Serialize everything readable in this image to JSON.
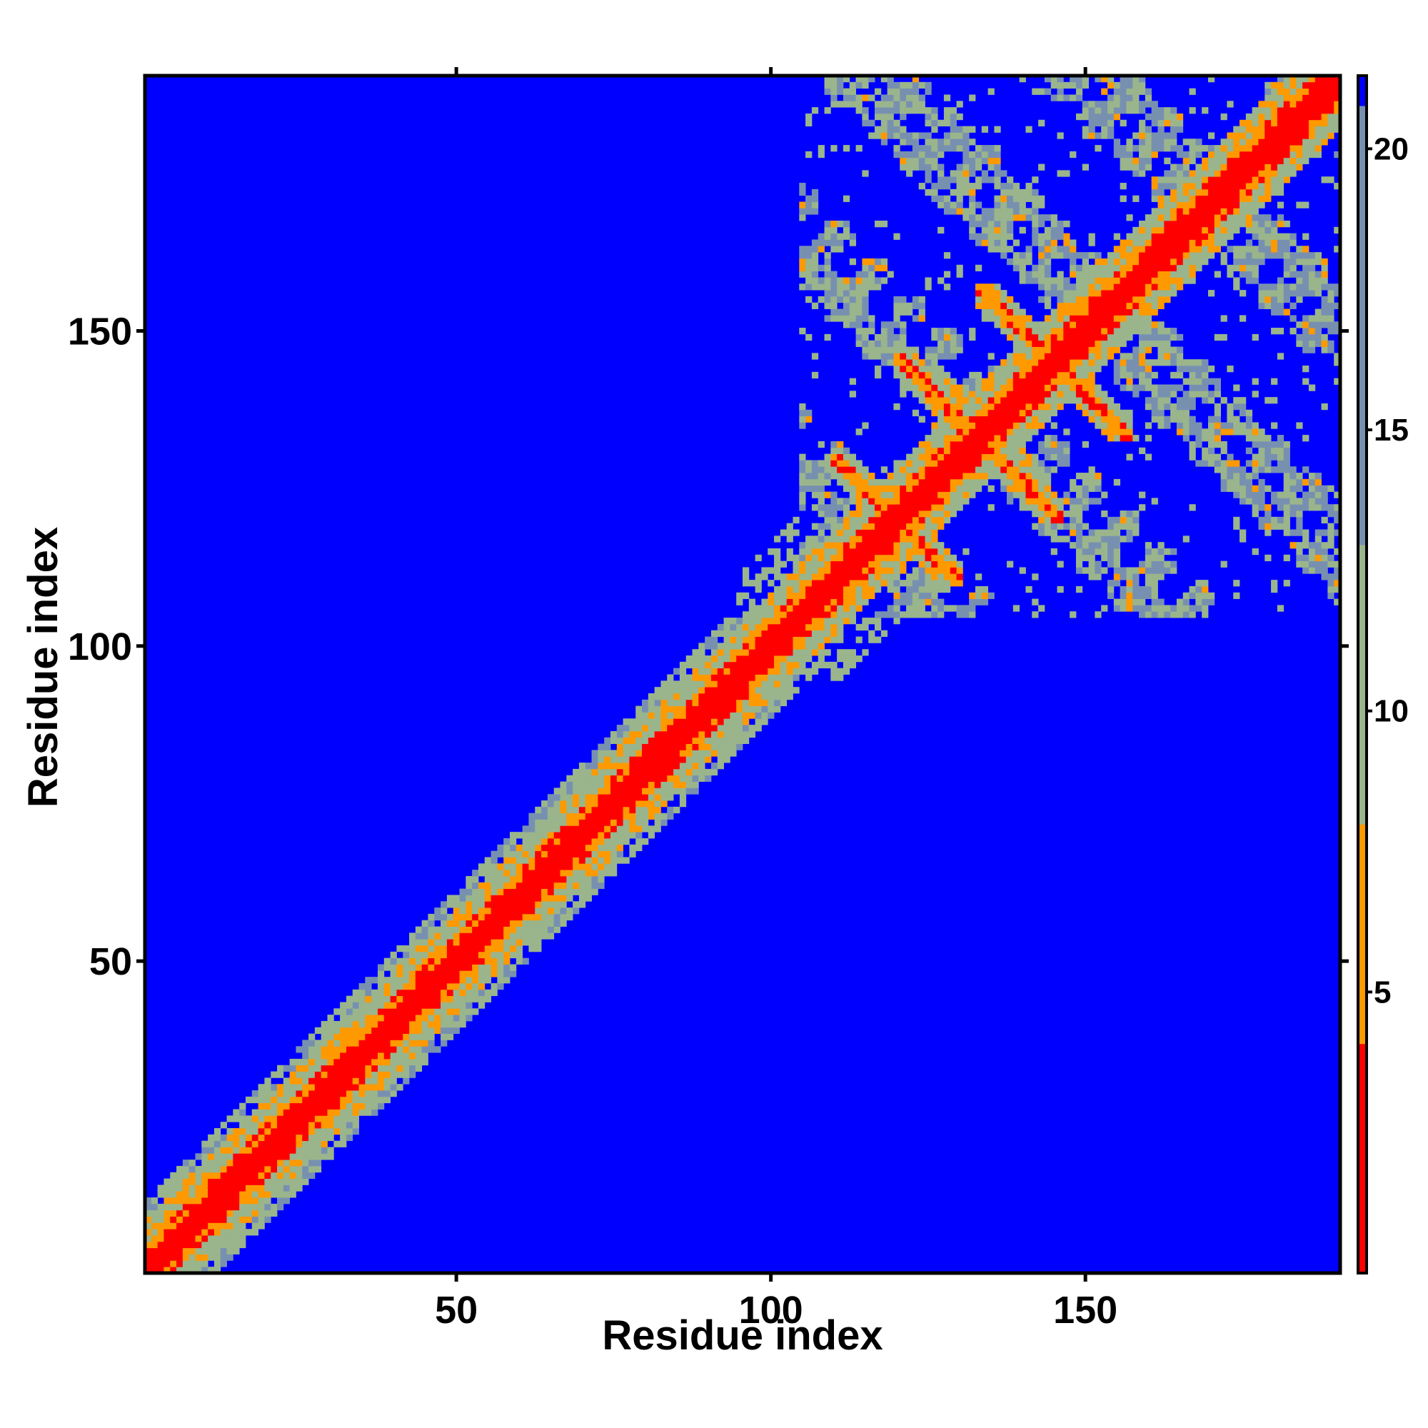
{
  "chart_data": {
    "type": "heatmap",
    "title": "",
    "xlabel": "Residue index",
    "ylabel": "Residue index",
    "xlim": [
      1,
      190
    ],
    "ylim": [
      1,
      190
    ],
    "x_ticks": [
      50,
      100,
      150
    ],
    "y_ticks": [
      50,
      100,
      150
    ],
    "colorbar": {
      "ticks": [
        5,
        10,
        15,
        20
      ],
      "range": [
        0,
        21.3
      ],
      "colors": {
        "close": "#ff0000",
        "near": "#ff9900",
        "mid": "#9ab58c",
        "far": "#7890b0",
        "background": "#0000ff"
      }
    },
    "structure": {
      "diagonal_band": {
        "start": 1,
        "end": 190,
        "core_width": 2,
        "mid_width": 4,
        "outer_width": 8
      },
      "dense_region": {
        "start": 105,
        "end": 190
      },
      "antiparallel_contacts": [
        {
          "a": [
            110,
            120
          ],
          "b": [
            120,
            130
          ]
        },
        {
          "a": [
            120,
            133
          ],
          "b": [
            133,
            146
          ]
        },
        {
          "a": [
            133,
            146
          ],
          "b": [
            146,
            157
          ]
        },
        {
          "a": [
            124,
            134
          ],
          "b": [
            134,
            144
          ]
        }
      ]
    }
  }
}
